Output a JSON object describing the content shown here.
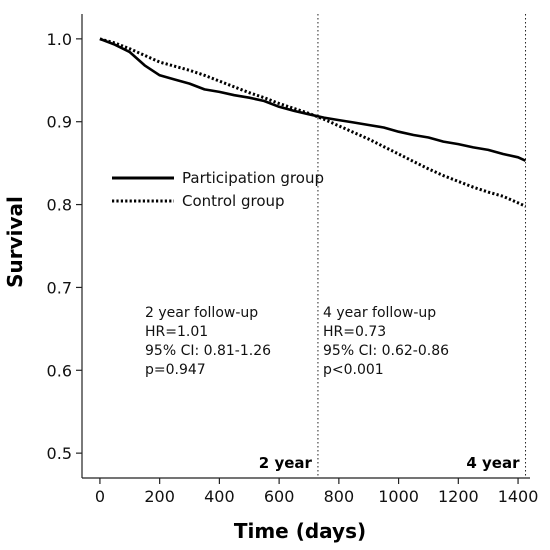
{
  "chart_data": {
    "type": "line",
    "xlabel": "Time (days)",
    "ylabel": "Survival",
    "xlim": [
      -60,
      1440
    ],
    "ylim": [
      0.47,
      1.03
    ],
    "x_ticks": [
      0,
      200,
      400,
      600,
      800,
      1000,
      1200,
      1400
    ],
    "y_ticks": [
      0.5,
      0.6,
      0.7,
      0.8,
      0.9,
      1.0
    ],
    "x_tick_labels": [
      "0",
      "200",
      "400",
      "600",
      "800",
      "1000",
      "1200",
      "1400"
    ],
    "y_tick_labels": [
      "0.5",
      "0.6",
      "0.7",
      "0.8",
      "0.9",
      "1.0"
    ],
    "grid": false,
    "legend_placement": "center-left",
    "series": [
      {
        "name": "Participation group",
        "style": "solid",
        "color": "#000000",
        "x": [
          0,
          50,
          100,
          150,
          200,
          250,
          300,
          350,
          400,
          450,
          500,
          550,
          600,
          650,
          700,
          750,
          800,
          850,
          900,
          950,
          1000,
          1050,
          1100,
          1150,
          1200,
          1250,
          1300,
          1350,
          1400,
          1425
        ],
        "y": [
          1.0,
          0.993,
          0.984,
          0.968,
          0.956,
          0.951,
          0.946,
          0.939,
          0.936,
          0.932,
          0.929,
          0.925,
          0.918,
          0.913,
          0.909,
          0.905,
          0.902,
          0.899,
          0.896,
          0.893,
          0.888,
          0.884,
          0.881,
          0.876,
          0.873,
          0.869,
          0.866,
          0.861,
          0.857,
          0.853
        ]
      },
      {
        "name": "Control group",
        "style": "dotted",
        "color": "#000000",
        "x": [
          0,
          50,
          100,
          150,
          200,
          250,
          300,
          350,
          400,
          450,
          500,
          550,
          600,
          650,
          700,
          750,
          800,
          850,
          900,
          950,
          1000,
          1050,
          1100,
          1150,
          1200,
          1250,
          1300,
          1350,
          1400,
          1425
        ],
        "y": [
          1.0,
          0.995,
          0.988,
          0.98,
          0.972,
          0.967,
          0.962,
          0.956,
          0.949,
          0.942,
          0.935,
          0.929,
          0.922,
          0.916,
          0.91,
          0.903,
          0.895,
          0.887,
          0.879,
          0.87,
          0.861,
          0.852,
          0.843,
          0.835,
          0.828,
          0.821,
          0.815,
          0.81,
          0.802,
          0.798
        ]
      }
    ],
    "vertical_lines": [
      {
        "x": 730,
        "label": "2 year"
      },
      {
        "x": 1425,
        "label": "4 year"
      }
    ],
    "annotations": [
      {
        "lines": [
          "2 year follow-up",
          "HR=1.01",
          "95% CI: 0.81-1.26",
          "p=0.947"
        ]
      },
      {
        "lines": [
          "4 year follow-up",
          "HR=0.73",
          "95% CI: 0.62-0.86",
          "p<0.001"
        ]
      }
    ]
  }
}
